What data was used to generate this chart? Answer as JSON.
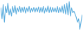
{
  "values": [
    0.5,
    -1.8,
    1.2,
    -2.5,
    0.8,
    -0.5,
    1.5,
    -1.0,
    0.3,
    -1.2,
    0.8,
    -0.5,
    1.0,
    -0.8,
    0.5,
    -0.3,
    0.8,
    -0.5,
    0.6,
    -0.4,
    0.7,
    -0.6,
    0.5,
    -0.3,
    0.8,
    -0.5,
    0.4,
    -0.3,
    0.6,
    -0.4,
    0.5,
    -0.3,
    0.7,
    -0.5,
    0.6,
    -0.4,
    0.8,
    -0.6,
    0.5,
    -0.3,
    0.9,
    -0.5,
    0.7,
    -0.4,
    0.6,
    -0.3,
    0.5,
    -0.4,
    0.8,
    -0.5,
    0.6,
    -0.4,
    0.9,
    -0.6,
    1.2,
    -0.8,
    1.5,
    -1.0,
    1.8,
    -1.2,
    0.5,
    -0.5,
    -0.2,
    -0.8,
    -1.5,
    -2.5,
    -1.8,
    -4.0,
    -2.5,
    -1.0
  ],
  "line_color": "#5badde",
  "background_color": "#ffffff",
  "linewidth": 0.8
}
